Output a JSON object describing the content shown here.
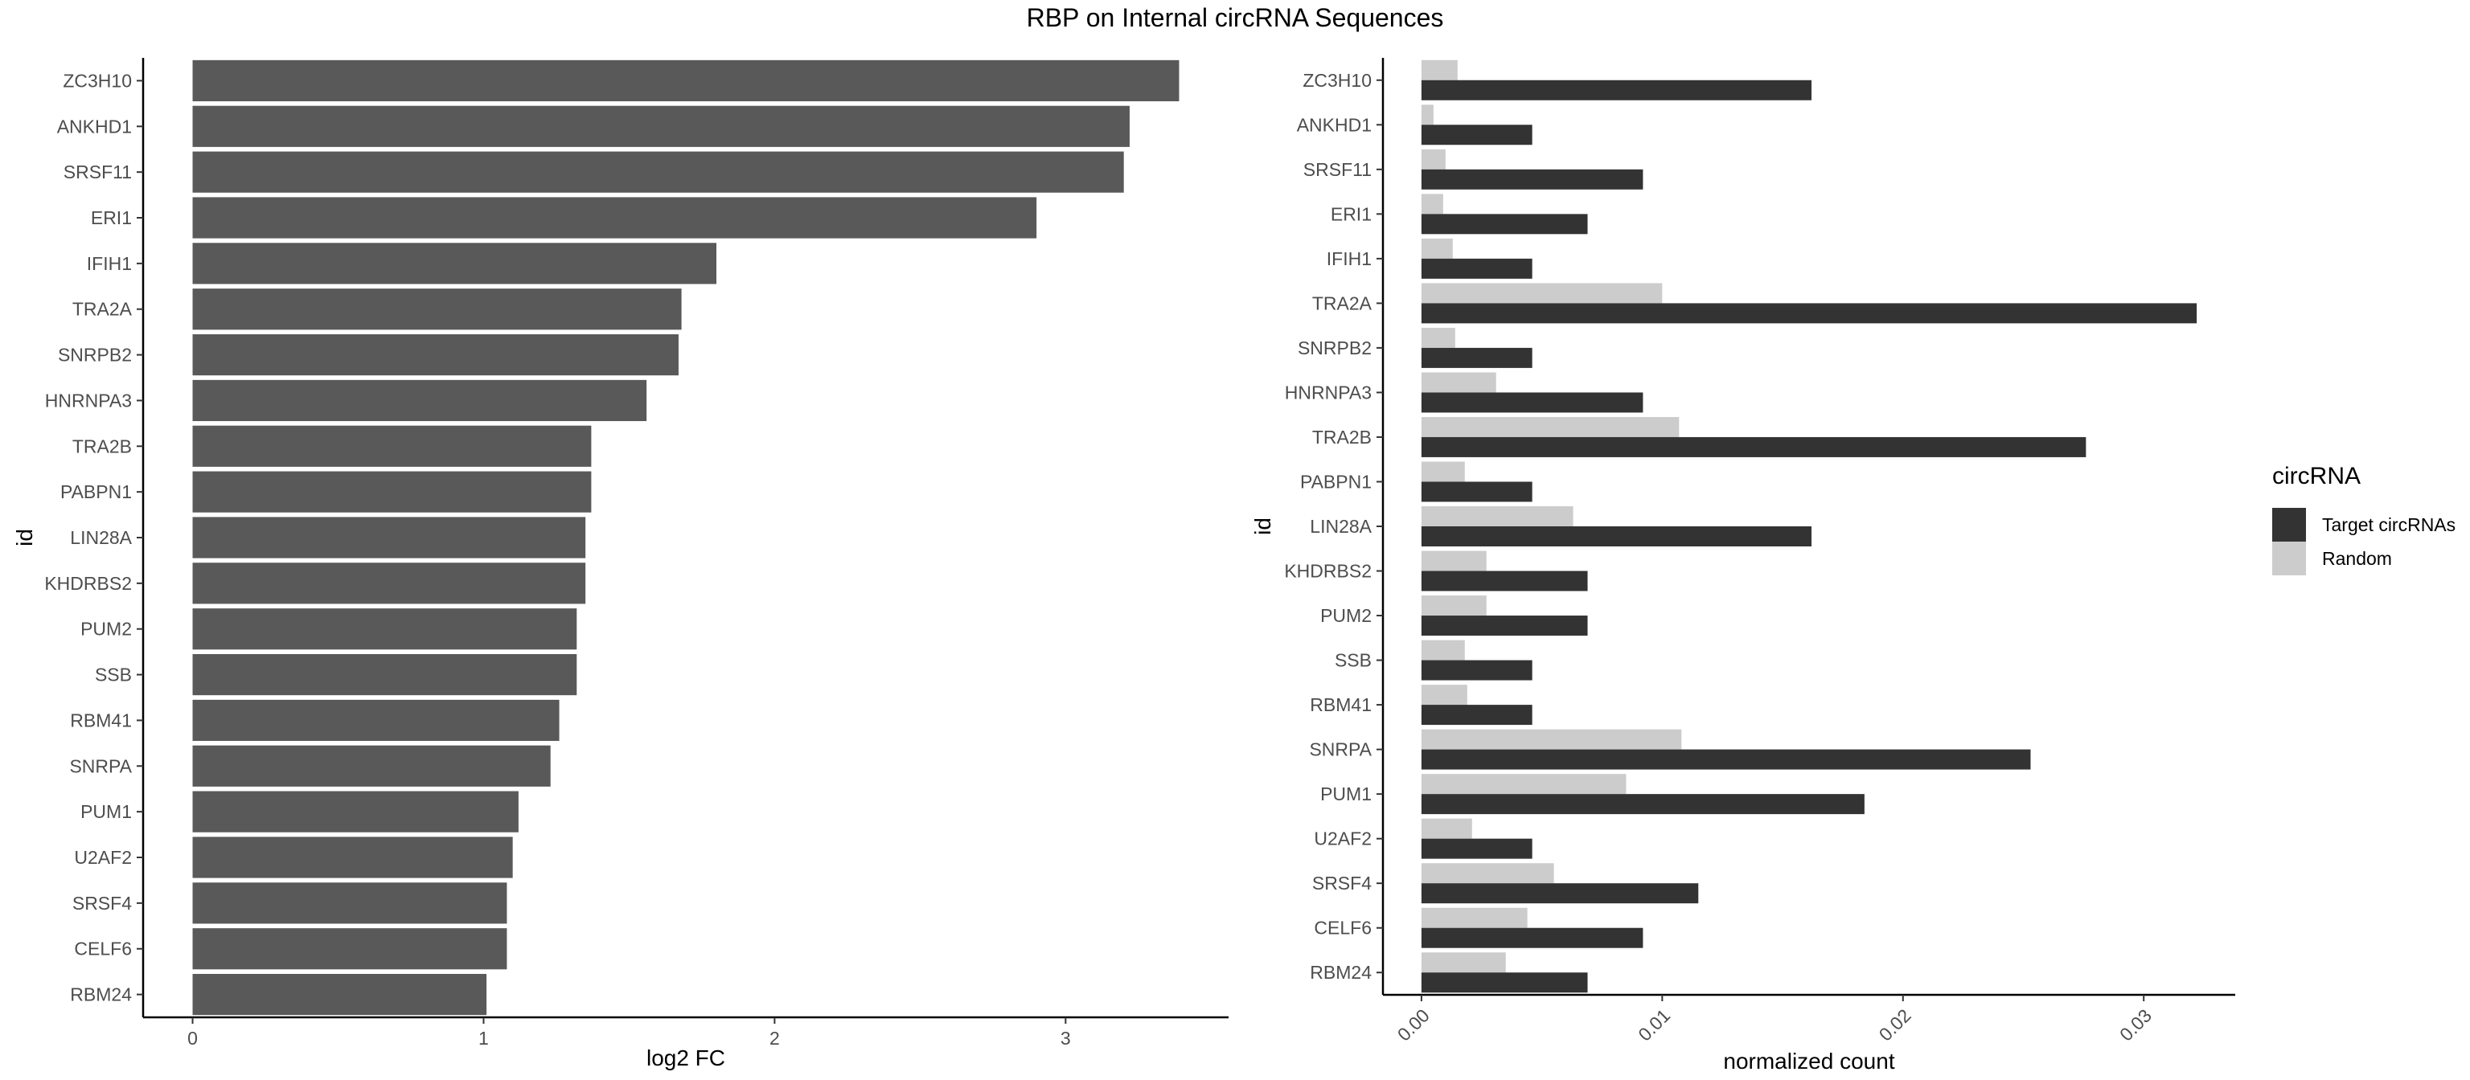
{
  "title": "RBP on Internal circRNA Sequences",
  "chart_data": [
    {
      "type": "bar",
      "orientation": "horizontal",
      "categories": [
        "ZC3H10",
        "ANKHD1",
        "SRSF11",
        "ERI1",
        "IFIH1",
        "TRA2A",
        "SNRPB2",
        "HNRNPA3",
        "TRA2B",
        "PABPN1",
        "LIN28A",
        "KHDRBS2",
        "PUM2",
        "SSB",
        "RBM41",
        "SNRPA",
        "PUM1",
        "U2AF2",
        "SRSF4",
        "CELF6",
        "RBM24"
      ],
      "values": [
        3.39,
        3.22,
        3.2,
        2.9,
        1.8,
        1.68,
        1.67,
        1.56,
        1.37,
        1.37,
        1.35,
        1.35,
        1.32,
        1.32,
        1.26,
        1.23,
        1.12,
        1.1,
        1.08,
        1.08,
        1.01
      ],
      "xlabel": "log2 FC",
      "ylabel": "id",
      "xlim": [
        -0.17,
        3.56
      ],
      "xticks": [
        "0",
        "1",
        "2",
        "3"
      ],
      "grid": false,
      "color": "#595959"
    },
    {
      "type": "bar",
      "orientation": "horizontal",
      "grouped": true,
      "categories": [
        "ZC3H10",
        "ANKHD1",
        "SRSF11",
        "ERI1",
        "IFIH1",
        "TRA2A",
        "SNRPB2",
        "HNRNPA3",
        "TRA2B",
        "PABPN1",
        "LIN28A",
        "KHDRBS2",
        "PUM2",
        "SSB",
        "RBM41",
        "SNRPA",
        "PUM1",
        "U2AF2",
        "SRSF4",
        "CELF6",
        "RBM24"
      ],
      "series": [
        {
          "name": "Target circRNAs",
          "color": "#333333",
          "values": [
            0.0162,
            0.0046,
            0.0092,
            0.0069,
            0.0046,
            0.0322,
            0.0046,
            0.0092,
            0.0276,
            0.0046,
            0.0162,
            0.0069,
            0.0069,
            0.0046,
            0.0046,
            0.0253,
            0.0184,
            0.0046,
            0.0115,
            0.0092,
            0.0069
          ]
        },
        {
          "name": "Random",
          "color": "#cccccc",
          "values": [
            0.0015,
            0.0005,
            0.001,
            0.0009,
            0.0013,
            0.01,
            0.0014,
            0.0031,
            0.0107,
            0.0018,
            0.0063,
            0.0027,
            0.0027,
            0.0018,
            0.0019,
            0.0108,
            0.0085,
            0.0021,
            0.0055,
            0.0044,
            0.0035
          ]
        }
      ],
      "xlabel": "normalized count",
      "ylabel": "id",
      "xlim": [
        -0.0016,
        0.0338
      ],
      "xticks": [
        "0.00",
        "0.01",
        "0.02",
        "0.03"
      ],
      "grid": false,
      "legend": {
        "title": "circRNA",
        "position": "right"
      }
    }
  ]
}
